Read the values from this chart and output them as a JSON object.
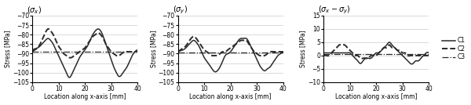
{
  "panels": [
    {
      "title_math": "$(\\sigma_x)$",
      "ylabel": "Stress [MPa]",
      "xlabel": "Location along x-axis [mm]",
      "ylim": [
        -105,
        -70
      ],
      "yticks": [
        -105,
        -100,
        -95,
        -90,
        -85,
        -80,
        -75,
        -70
      ],
      "xlim": [
        0,
        40
      ]
    },
    {
      "title_math": "$(\\sigma_y)$",
      "ylabel": "Stress [MPa]",
      "xlabel": "Location along x-axis [mm]",
      "ylim": [
        -105,
        -70
      ],
      "yticks": [
        -105,
        -100,
        -95,
        -90,
        -85,
        -80,
        -75,
        -70
      ],
      "xlim": [
        0,
        40
      ]
    },
    {
      "title_math": "$(\\sigma_x - \\sigma_y)$",
      "ylabel": "Stress [MPa]",
      "xlabel": "Location along x-axis [mm]",
      "ylim": [
        -10,
        15
      ],
      "yticks": [
        -10,
        -5,
        0,
        5,
        10,
        15
      ],
      "xlim": [
        0,
        40
      ]
    }
  ],
  "legend": [
    "C1",
    "C2",
    "C3"
  ],
  "color": "#2a2a2a",
  "ls_C1": "solid",
  "ls_C2": "dashed",
  "ls_C3": "dashdot",
  "lw_C1": 1.1,
  "lw_C2": 1.4,
  "lw_C3": 0.9,
  "sx_C1_x": [
    0,
    1,
    2,
    3,
    4,
    5,
    6,
    7,
    8,
    9,
    10,
    11,
    12,
    13,
    14,
    15,
    16,
    17,
    18,
    19,
    20,
    21,
    22,
    23,
    24,
    25,
    26,
    27,
    28,
    29,
    30,
    31,
    32,
    33,
    34,
    35,
    36,
    37,
    38,
    39,
    40
  ],
  "sx_C1_y": [
    -88,
    -87.5,
    -87,
    -86,
    -84.5,
    -83,
    -82,
    -83,
    -85,
    -88,
    -91,
    -94,
    -97,
    -100,
    -102.5,
    -101,
    -98,
    -95,
    -92,
    -90,
    -88,
    -86,
    -83,
    -80,
    -78,
    -77,
    -78,
    -81,
    -85,
    -89,
    -93,
    -97,
    -100,
    -102,
    -101,
    -99,
    -97,
    -94,
    -91,
    -89,
    -88
  ],
  "sx_C2_x": [
    0,
    1,
    2,
    3,
    4,
    5,
    6,
    7,
    8,
    9,
    10,
    11,
    12,
    13,
    14,
    15,
    16,
    17,
    18,
    19,
    20,
    21,
    22,
    23,
    24,
    25,
    26,
    27,
    28,
    29,
    30,
    31,
    32,
    33,
    34,
    35,
    36,
    37,
    38,
    39,
    40
  ],
  "sx_C2_y": [
    -89,
    -88,
    -87,
    -85,
    -82,
    -79,
    -77,
    -78,
    -80,
    -83,
    -86,
    -88,
    -90,
    -91,
    -92,
    -92,
    -91,
    -90,
    -89,
    -88,
    -87,
    -85,
    -83,
    -81,
    -80,
    -79,
    -80,
    -82,
    -85,
    -87,
    -89,
    -90,
    -91,
    -91,
    -90,
    -89,
    -89,
    -89,
    -89,
    -89,
    -89
  ],
  "sx_C3_y": -89.0,
  "sy_C1_x": [
    0,
    1,
    2,
    3,
    4,
    5,
    6,
    7,
    8,
    9,
    10,
    11,
    12,
    13,
    14,
    15,
    16,
    17,
    18,
    19,
    20,
    21,
    22,
    23,
    24,
    25,
    26,
    27,
    28,
    29,
    30,
    31,
    32,
    33,
    34,
    35,
    36,
    37,
    38,
    39,
    40
  ],
  "sy_C1_y": [
    -89,
    -88.5,
    -88,
    -87,
    -85.5,
    -84,
    -83,
    -84,
    -86,
    -89,
    -92,
    -94,
    -96,
    -98,
    -99.5,
    -99,
    -97,
    -94,
    -91,
    -90,
    -89,
    -87,
    -85,
    -83,
    -82,
    -82,
    -82,
    -84,
    -87,
    -90,
    -93,
    -96,
    -98,
    -99,
    -98,
    -97,
    -95,
    -93,
    -91,
    -90,
    -89
  ],
  "sy_C2_x": [
    0,
    1,
    2,
    3,
    4,
    5,
    6,
    7,
    8,
    9,
    10,
    11,
    12,
    13,
    14,
    15,
    16,
    17,
    18,
    19,
    20,
    21,
    22,
    23,
    24,
    25,
    26,
    27,
    28,
    29,
    30,
    31,
    32,
    33,
    34,
    35,
    36,
    37,
    38,
    39,
    40
  ],
  "sy_C2_y": [
    -89,
    -88,
    -87,
    -86,
    -84,
    -82,
    -81,
    -82,
    -84,
    -86,
    -88,
    -89,
    -90,
    -91,
    -91,
    -91,
    -90,
    -89,
    -89,
    -88,
    -87,
    -86,
    -85,
    -84,
    -83,
    -83,
    -83,
    -85,
    -87,
    -89,
    -90,
    -91,
    -91,
    -91,
    -90,
    -89,
    -89,
    -89,
    -89,
    -89,
    -89
  ],
  "sy_C3_y": -89.5
}
